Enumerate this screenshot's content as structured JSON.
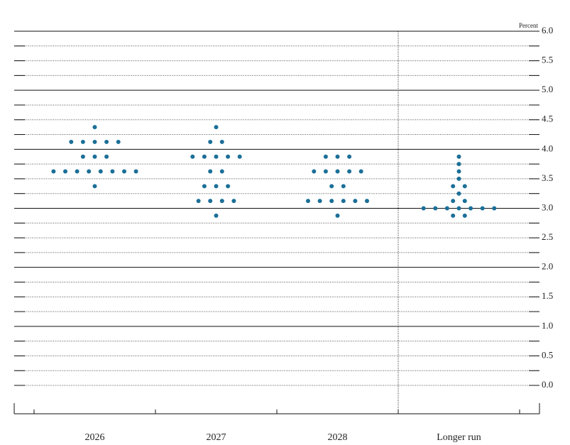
{
  "chart_data": {
    "type": "dot",
    "y_label": "Percent",
    "categories": [
      "2026",
      "2027",
      "2028",
      "Longer run"
    ],
    "values": [
      [
        4.375,
        4.125,
        4.125,
        4.125,
        4.125,
        4.125,
        3.875,
        3.875,
        3.875,
        3.625,
        3.625,
        3.625,
        3.625,
        3.625,
        3.625,
        3.625,
        3.625,
        3.375
      ],
      [
        4.375,
        4.125,
        4.125,
        3.875,
        3.875,
        3.875,
        3.875,
        3.875,
        3.625,
        3.625,
        3.375,
        3.375,
        3.375,
        3.125,
        3.125,
        3.125,
        3.125,
        2.875
      ],
      [
        3.875,
        3.875,
        3.875,
        3.625,
        3.625,
        3.625,
        3.625,
        3.625,
        3.375,
        3.375,
        3.125,
        3.125,
        3.125,
        3.125,
        3.125,
        3.125,
        2.875
      ],
      [
        3.875,
        3.75,
        3.625,
        3.5,
        3.375,
        3.375,
        3.25,
        3.125,
        3.125,
        3.0,
        3.0,
        3.0,
        3.0,
        3.0,
        3.0,
        3.0,
        2.875,
        2.875
      ]
    ],
    "color": "#1b6f98",
    "ylim": [
      0,
      6
    ],
    "yticks": [
      {
        "value": 0,
        "label": "0.0"
      },
      {
        "value": 0.5,
        "label": "0.5"
      },
      {
        "value": 1,
        "label": "1.0"
      },
      {
        "value": 1.5,
        "label": "1.5"
      },
      {
        "value": 2,
        "label": "2.0"
      },
      {
        "value": 2.5,
        "label": "2.5"
      },
      {
        "value": 3,
        "label": "3.0"
      },
      {
        "value": 3.5,
        "label": "3.5"
      },
      {
        "value": 4,
        "label": "4.0"
      },
      {
        "value": 4.5,
        "label": "4.5"
      },
      {
        "value": 5,
        "label": "5.0"
      },
      {
        "value": 5.5,
        "label": "5.5"
      },
      {
        "value": 6,
        "label": "6.0"
      }
    ],
    "grid": true
  }
}
